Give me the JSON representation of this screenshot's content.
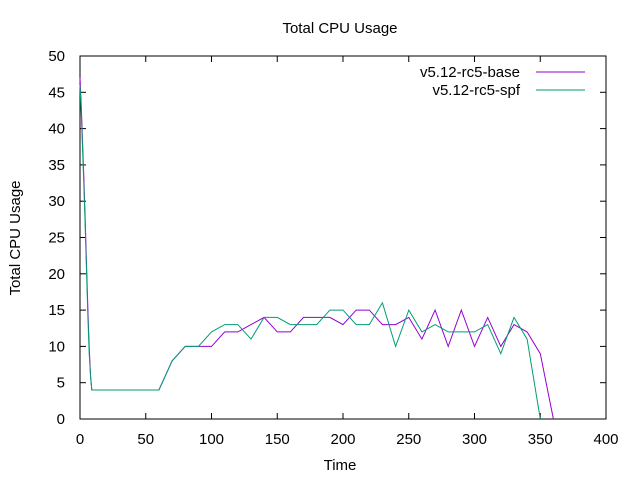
{
  "chart_data": {
    "type": "line",
    "title": "Total CPU Usage",
    "xlabel": "Time",
    "ylabel": "Total CPU Usage",
    "xlim": [
      0,
      400
    ],
    "ylim": [
      0,
      50
    ],
    "xticks": [
      0,
      50,
      100,
      150,
      200,
      250,
      300,
      350,
      400
    ],
    "yticks": [
      0,
      5,
      10,
      15,
      20,
      25,
      30,
      35,
      40,
      45,
      50
    ],
    "grid": false,
    "legend_position": "top-right",
    "series": [
      {
        "name": "v5.12-rc5-base",
        "color": "#9400d3",
        "x": [
          0,
          1,
          2,
          3,
          4,
          5,
          6,
          7,
          8,
          9,
          10,
          20,
          30,
          40,
          50,
          60,
          70,
          80,
          90,
          100,
          110,
          120,
          130,
          140,
          150,
          160,
          170,
          180,
          190,
          200,
          210,
          220,
          230,
          240,
          250,
          260,
          270,
          280,
          290,
          300,
          310,
          320,
          330,
          340,
          350,
          360
        ],
        "y": [
          47,
          43,
          38,
          33,
          27,
          21,
          15,
          10,
          6,
          4,
          4,
          4,
          4,
          4,
          4,
          4,
          8,
          10,
          10,
          10,
          12,
          12,
          13,
          14,
          12,
          12,
          14,
          14,
          14,
          13,
          15,
          15,
          13,
          13,
          14,
          11,
          15,
          10,
          15,
          10,
          14,
          10,
          13,
          12,
          9,
          0
        ]
      },
      {
        "name": "v5.12-rc5-spf",
        "color": "#009e73",
        "x": [
          0,
          1,
          2,
          3,
          4,
          5,
          6,
          7,
          8,
          9,
          10,
          20,
          30,
          40,
          50,
          60,
          70,
          80,
          90,
          100,
          110,
          120,
          130,
          140,
          150,
          160,
          170,
          180,
          190,
          200,
          210,
          220,
          230,
          240,
          250,
          260,
          270,
          280,
          290,
          300,
          310,
          320,
          330,
          340,
          350
        ],
        "y": [
          46,
          42,
          37,
          32,
          26,
          20,
          14,
          9,
          6,
          4,
          4,
          4,
          4,
          4,
          4,
          4,
          8,
          10,
          10,
          12,
          13,
          13,
          11,
          14,
          14,
          13,
          13,
          13,
          15,
          15,
          13,
          13,
          16,
          10,
          15,
          12,
          13,
          12,
          12,
          12,
          13,
          9,
          14,
          11,
          0
        ]
      }
    ]
  }
}
